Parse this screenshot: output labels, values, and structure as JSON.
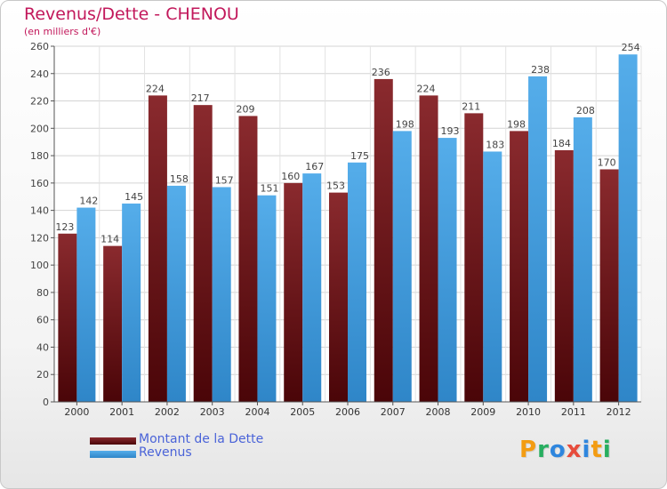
{
  "title": "Revenus/Dette - CHENOU",
  "subtitle": "(en milliers d'€)",
  "brand": {
    "letters": [
      {
        "char": "P",
        "color": "#f39c12"
      },
      {
        "char": "r",
        "color": "#27ae60"
      },
      {
        "char": "o",
        "color": "#2e86de"
      },
      {
        "char": "x",
        "color": "#e74c3c"
      },
      {
        "char": "i",
        "color": "#2e86de"
      },
      {
        "char": "t",
        "color": "#f39c12"
      },
      {
        "char": "i",
        "color": "#27ae60"
      }
    ]
  },
  "legend": [
    {
      "label": "Montant de la Dette",
      "color": "#6b0f12"
    },
    {
      "label": "Revenus",
      "color": "#3a9ad9"
    }
  ],
  "chart_data": {
    "type": "bar",
    "title": "Revenus/Dette - CHENOU",
    "subtitle": "(en milliers d'€)",
    "categories": [
      "2000",
      "2001",
      "2002",
      "2003",
      "2004",
      "2005",
      "2006",
      "2007",
      "2008",
      "2009",
      "2010",
      "2011",
      "2012"
    ],
    "series": [
      {
        "name": "Montant de la Dette",
        "color": "#7a1a1e",
        "values": [
          123,
          114,
          224,
          217,
          209,
          160,
          153,
          236,
          224,
          211,
          198,
          184,
          170
        ]
      },
      {
        "name": "Revenus",
        "color": "#4aa3e0",
        "values": [
          142,
          145,
          158,
          157,
          151,
          167,
          175,
          198,
          193,
          183,
          238,
          208,
          254
        ]
      }
    ],
    "ylim": [
      0,
      260
    ],
    "yticks": [
      0,
      20,
      40,
      60,
      80,
      100,
      120,
      140,
      160,
      180,
      200,
      220,
      240,
      260
    ],
    "grid": true,
    "legend_position": "bottom-left"
  }
}
